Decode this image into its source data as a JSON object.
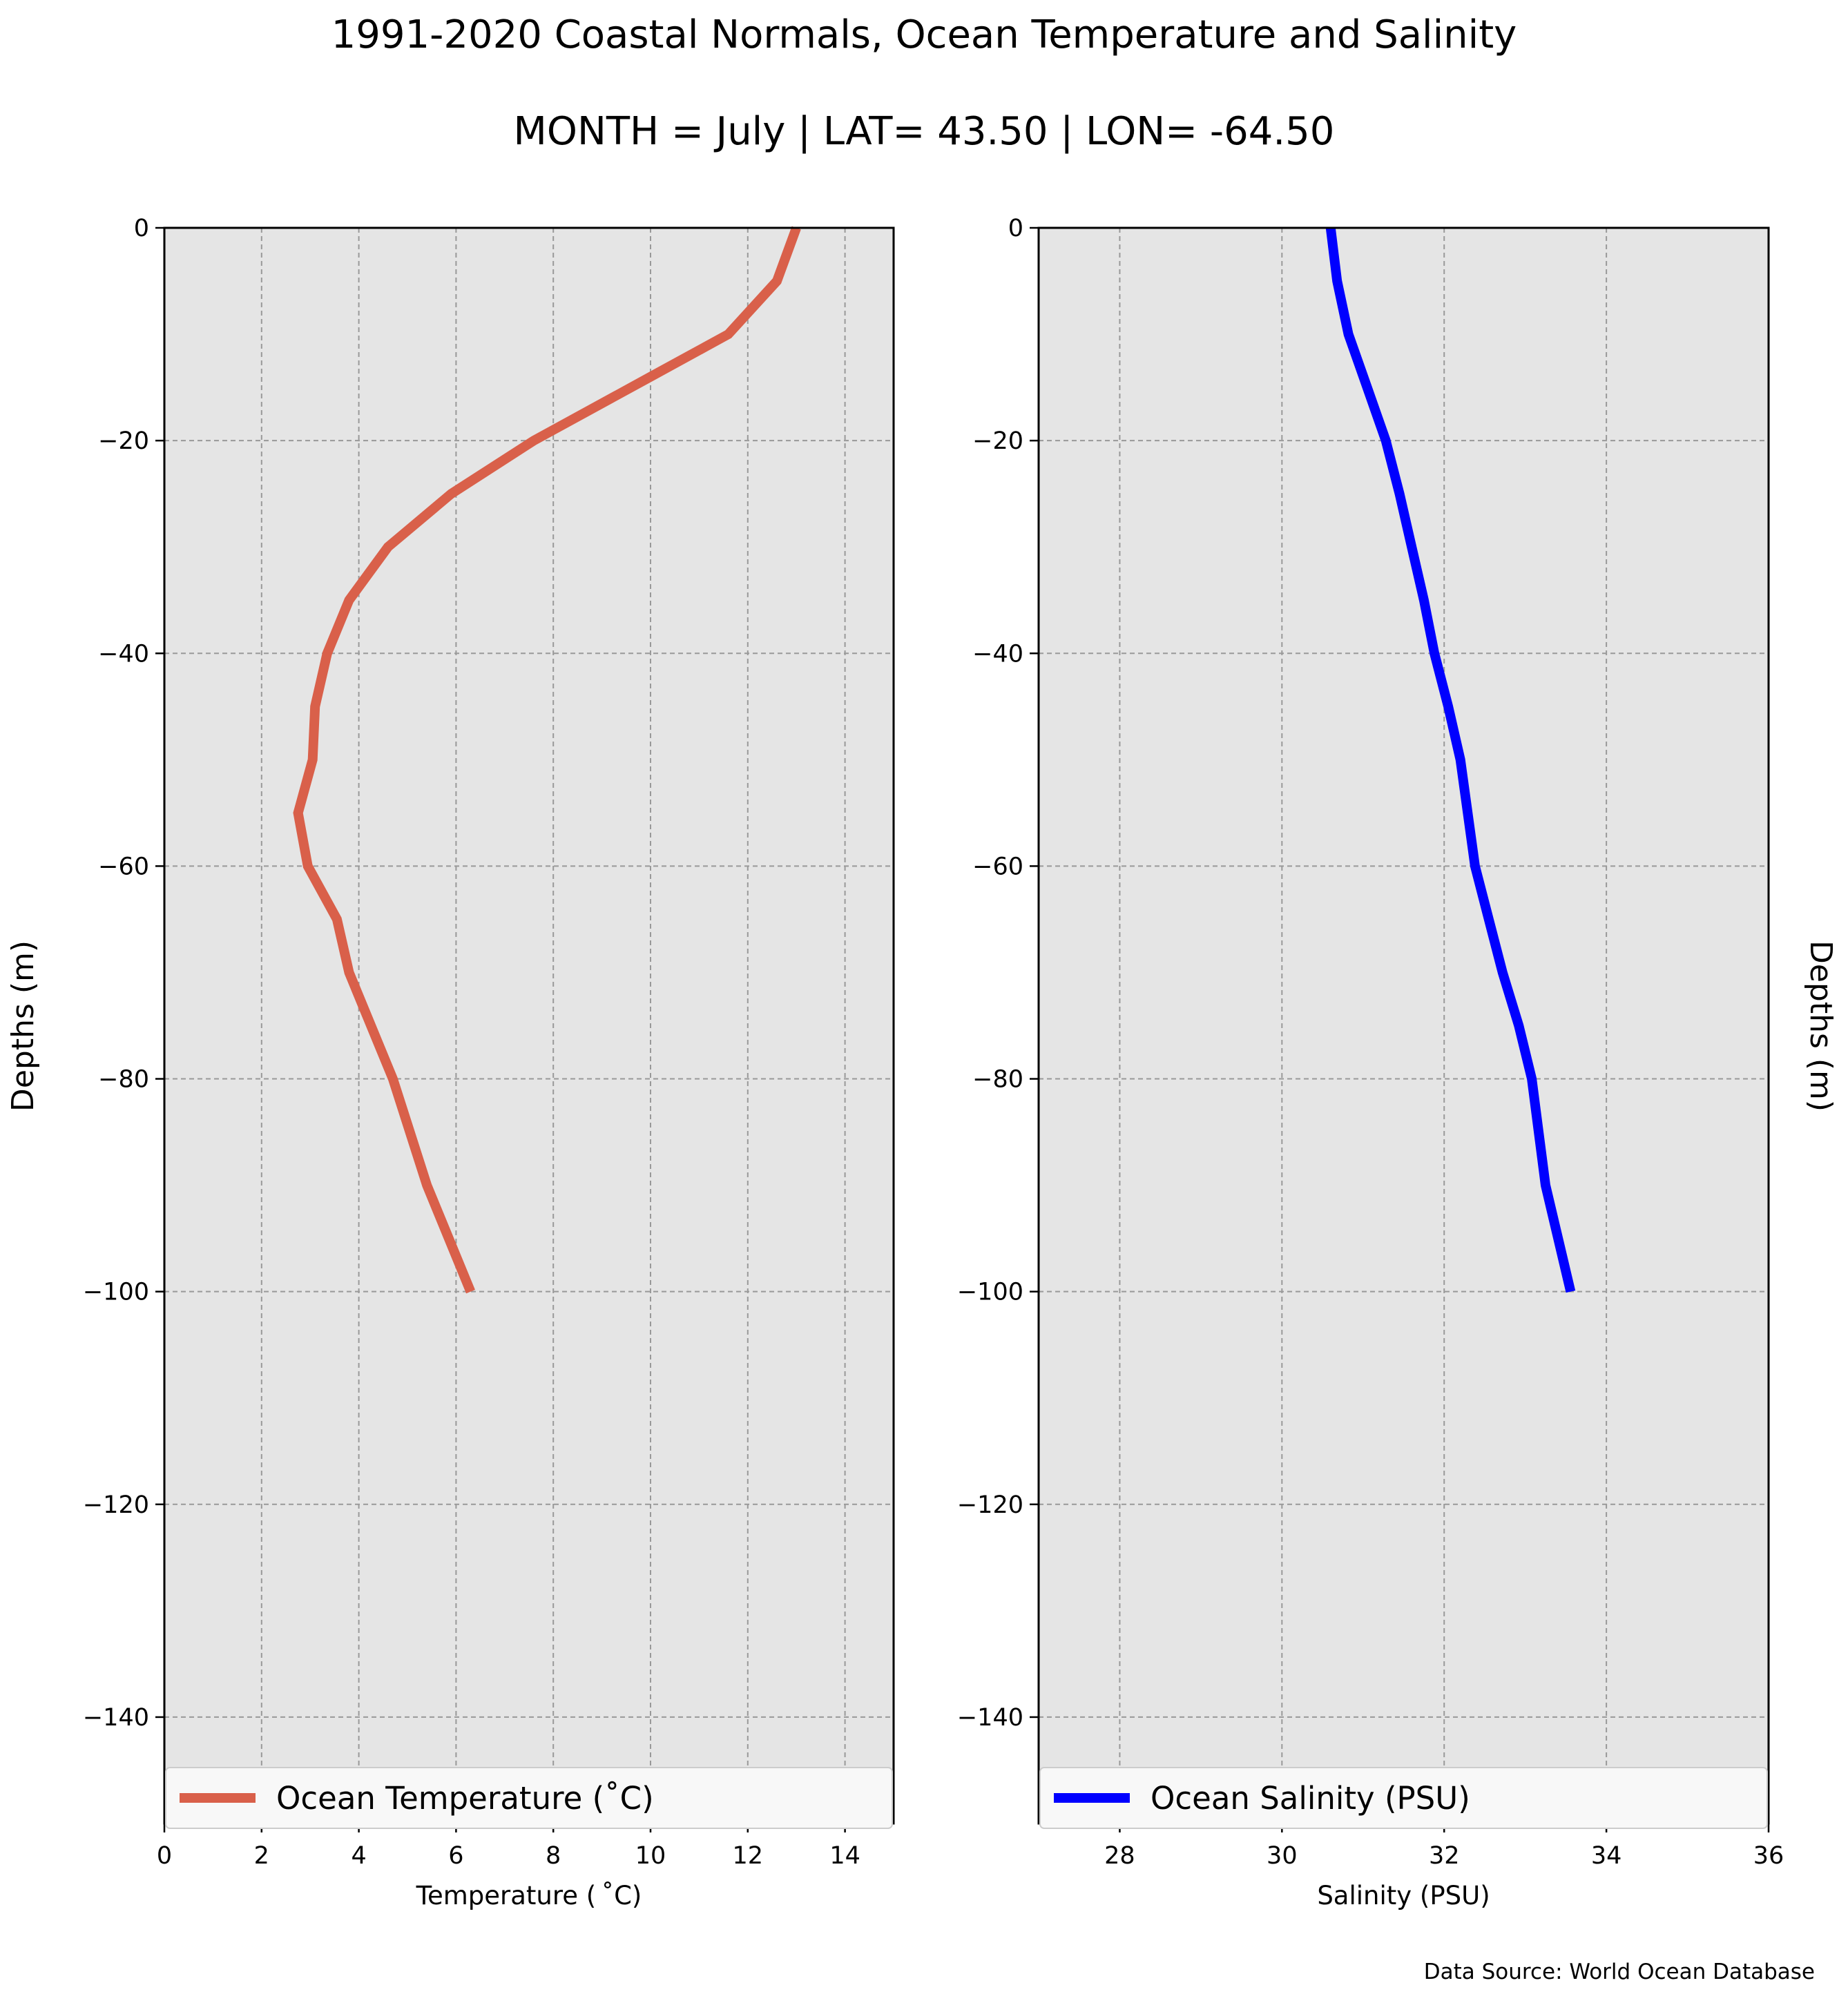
{
  "figure": {
    "title": "1991-2020 Coastal Normals, Ocean Temperature and Salinity",
    "subtitle": "MONTH = July | LAT= 43.50 | LON= -64.50",
    "source_note": "Data Source: World Ocean Database"
  },
  "colors": {
    "plot_background": "#e5e5e5",
    "grid": "#999999",
    "temperature_line": "#d9604a",
    "salinity_line": "#0000ff"
  },
  "chart_data": [
    {
      "type": "line",
      "xlabel": "Temperature ($^\\circ$C)",
      "xlabel_text": "Temperature ( ˚C)",
      "ylabel": "Depths (m)",
      "xlim": [
        0,
        15
      ],
      "ylim": [
        -150,
        0
      ],
      "xticks": [
        0,
        2,
        4,
        6,
        8,
        10,
        12,
        14
      ],
      "yticks": [
        0,
        -20,
        -40,
        -60,
        -80,
        -100,
        -120,
        -140
      ],
      "grid": true,
      "legend_position": "bottom",
      "series": [
        {
          "name": "Ocean Temperature (˚C)",
          "color": "#d9604a",
          "x": [
            13.0,
            12.6,
            11.6,
            10.0,
            7.6,
            5.9,
            4.6,
            3.8,
            3.35,
            3.1,
            3.05,
            2.75,
            2.95,
            3.55,
            3.8,
            4.7,
            5.4,
            6.3
          ],
          "y": [
            0,
            -5,
            -10,
            -14,
            -20,
            -25,
            -30,
            -35,
            -40,
            -45,
            -50,
            -55,
            -60,
            -65,
            -70,
            -80,
            -90,
            -100
          ]
        }
      ]
    },
    {
      "type": "line",
      "xlabel": "Salinity (PSU)",
      "ylabel": "Depths (m)",
      "ylabel_position": "right",
      "xlim": [
        27,
        36
      ],
      "ylim": [
        -150,
        0
      ],
      "xticks": [
        28,
        30,
        32,
        34,
        36
      ],
      "yticks": [
        0,
        -20,
        -40,
        -60,
        -80,
        -100,
        -120,
        -140
      ],
      "grid": true,
      "legend_position": "bottom",
      "series": [
        {
          "name": "Ocean Salinity (PSU)",
          "color": "#0000ff",
          "x": [
            30.6,
            30.68,
            30.82,
            31.05,
            31.28,
            31.45,
            31.6,
            31.75,
            31.88,
            32.05,
            32.2,
            32.38,
            32.55,
            32.72,
            32.92,
            33.08,
            33.25,
            33.56
          ],
          "y": [
            0,
            -5,
            -10,
            -15,
            -20,
            -25,
            -30,
            -35,
            -40,
            -45,
            -50,
            -60,
            -65,
            -70,
            -75,
            -80,
            -90,
            -100
          ]
        }
      ]
    }
  ]
}
